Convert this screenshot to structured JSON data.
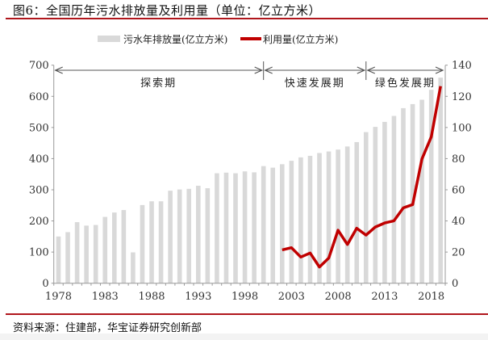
{
  "title": "图6：全国历年污水排放量及利用量（单位：亿立方米）",
  "source": "资料来源：住建部，华宝证券研究创新部",
  "chart_data": {
    "type": "bar+line",
    "title": "全国历年污水排放量及利用量（单位：亿立方米）",
    "categories": [
      1978,
      1979,
      1980,
      1981,
      1982,
      1983,
      1984,
      1985,
      1986,
      1987,
      1988,
      1989,
      1990,
      1991,
      1992,
      1993,
      1994,
      1995,
      1996,
      1997,
      1998,
      1999,
      2000,
      2001,
      2002,
      2003,
      2004,
      2005,
      2006,
      2007,
      2008,
      2009,
      2010,
      2011,
      2012,
      2013,
      2014,
      2015,
      2016,
      2017,
      2018,
      2019
    ],
    "x_tick_labels": [
      "1978",
      "1983",
      "1988",
      "1993",
      "1998",
      "2003",
      "2008",
      "2013",
      "2018"
    ],
    "series": [
      {
        "name": "污水年排放量(亿立方米)",
        "type": "bar",
        "axis": "left",
        "color": "#d9d9d9",
        "values": [
          150,
          164,
          196,
          185,
          187,
          213,
          227,
          235,
          99,
          251,
          263,
          263,
          297,
          301,
          303,
          313,
          305,
          353,
          355,
          353,
          359,
          356,
          376,
          371,
          382,
          393,
          404,
          409,
          418,
          423,
          429,
          439,
          453,
          485,
          502,
          518,
          537,
          562,
          575,
          589,
          621,
          660
        ]
      },
      {
        "name": "利用量(亿立方米)",
        "type": "line",
        "axis": "right",
        "color": "#c00000",
        "values": [
          null,
          null,
          null,
          null,
          null,
          null,
          null,
          null,
          null,
          null,
          null,
          null,
          null,
          null,
          null,
          null,
          null,
          null,
          null,
          null,
          null,
          null,
          null,
          null,
          21.4,
          22.8,
          16.8,
          19.4,
          10.4,
          16.2,
          34,
          24.9,
          35.3,
          30.9,
          36.1,
          38.7,
          40.1,
          48.4,
          50.5,
          79.8,
          94,
          126.5
        ]
      }
    ],
    "y_left": {
      "range": [
        0,
        700
      ],
      "ticks": [
        "0",
        "100",
        "200",
        "300",
        "400",
        "500",
        "600",
        "700"
      ]
    },
    "y_right": {
      "range": [
        0,
        140
      ],
      "ticks": [
        "0",
        "20",
        "40",
        "60",
        "80",
        "100",
        "120",
        "140"
      ]
    },
    "phases": [
      {
        "label": "探索期",
        "from": 1978,
        "to": 2000
      },
      {
        "label": "快速发展期",
        "from": 2000,
        "to": 2011
      },
      {
        "label": "绿色发展期",
        "from": 2011,
        "to": 2019
      }
    ],
    "legend_placement": "top-center",
    "grid": false
  }
}
